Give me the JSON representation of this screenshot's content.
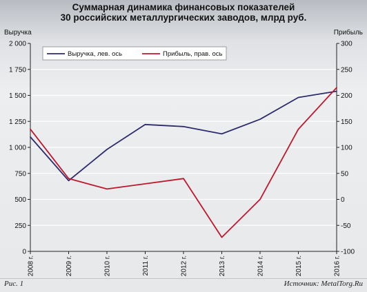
{
  "title": {
    "line1": "Суммарная динамика финансовых показателей",
    "line2": "30 российских металлургических заводов, млрд руб."
  },
  "footer": {
    "figure_label": "Рис. 1",
    "source": "Источник: MetalTorg.Ru"
  },
  "colors": {
    "revenue": "#2e2a6e",
    "profit": "#c0162c",
    "grid": "#ffffff",
    "axis": "#222222"
  },
  "chart_data": {
    "type": "line",
    "x": [
      "2008 г.",
      "2009 г.",
      "2010 г.",
      "2011 г.",
      "2012 г.",
      "2013 г.",
      "2014 г.",
      "2015 г.",
      "2016 г."
    ],
    "left_axis": {
      "label": "Выручка",
      "ylim": [
        0,
        2000
      ],
      "ticks": [
        "0",
        "250",
        "500",
        "750",
        "1 000",
        "1 250",
        "1 500",
        "1 750",
        "2 000"
      ]
    },
    "right_axis": {
      "label": "Прибыль",
      "ylim": [
        -100,
        300
      ],
      "ticks": [
        "-100",
        "-50",
        "0",
        "50",
        "100",
        "150",
        "200",
        "250",
        "300"
      ]
    },
    "series": [
      {
        "name": "Выручка, лев. ось",
        "axis": "left",
        "color": "#2e2a6e",
        "values": [
          1100,
          680,
          980,
          1220,
          1200,
          1130,
          1270,
          1480,
          1540
        ]
      },
      {
        "name": "Прибыль, прав. ось",
        "axis": "right",
        "color": "#c0162c",
        "values": [
          135,
          40,
          20,
          30,
          40,
          -73,
          0,
          135,
          215
        ]
      }
    ],
    "grid": "horizontal",
    "legend_position": "top-left"
  }
}
